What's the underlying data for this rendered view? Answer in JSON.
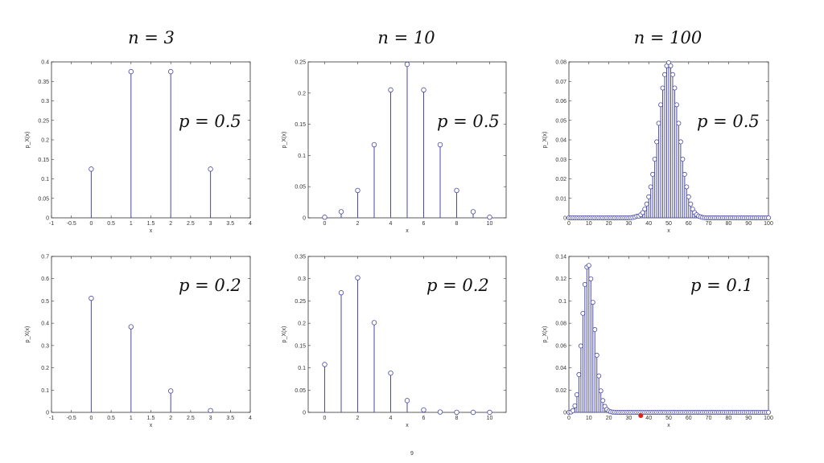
{
  "column_titles": [
    "n = 3",
    "n = 10",
    "n = 100"
  ],
  "page_number": "9",
  "colors": {
    "stem": "#4a4aa8",
    "marker_fill": "#ffffff",
    "highlight": "#e02020"
  },
  "highlight_point": {
    "panel": 5,
    "x": 36,
    "y": 0
  },
  "chart_data": [
    {
      "type": "stem",
      "n": 3,
      "p": 0.5,
      "annotation": "p = 0.5",
      "xlabel": "x",
      "ylabel": "p_X(x)",
      "xlim": [
        -1,
        4
      ],
      "ylim": [
        0,
        0.4
      ],
      "xticks": [
        "-1",
        "-0.5",
        "0",
        "0.5",
        "1",
        "1.5",
        "2",
        "2.5",
        "3",
        "3.5",
        "4"
      ],
      "yticks": [
        "0",
        "0.05",
        "0.1",
        "0.15",
        "0.2",
        "0.25",
        "0.3",
        "0.35",
        "0.4"
      ],
      "x": [
        0,
        1,
        2,
        3
      ],
      "y": [
        0.125,
        0.375,
        0.375,
        0.125
      ]
    },
    {
      "type": "stem",
      "n": 10,
      "p": 0.5,
      "annotation": "p = 0.5",
      "xlabel": "x",
      "ylabel": "p_X(x)",
      "xlim": [
        -1,
        11
      ],
      "ylim": [
        0,
        0.25
      ],
      "xticks": [
        "0",
        "2",
        "4",
        "6",
        "8",
        "10"
      ],
      "yticks": [
        "0",
        "0.05",
        "0.1",
        "0.15",
        "0.2",
        "0.25"
      ],
      "x": [
        0,
        1,
        2,
        3,
        4,
        5,
        6,
        7,
        8,
        9,
        10
      ],
      "y": [
        0.001,
        0.0098,
        0.0439,
        0.1172,
        0.2051,
        0.2461,
        0.2051,
        0.1172,
        0.0439,
        0.0098,
        0.001
      ]
    },
    {
      "type": "stem",
      "n": 100,
      "p": 0.5,
      "annotation": "p = 0.5",
      "xlabel": "x",
      "ylabel": "p_X(x)",
      "xlim": [
        0,
        100
      ],
      "ylim": [
        0,
        0.08
      ],
      "xticks": [
        "0",
        "10",
        "20",
        "30",
        "40",
        "50",
        "60",
        "70",
        "80",
        "90",
        "100"
      ],
      "yticks": [
        "0",
        "0.01",
        "0.02",
        "0.03",
        "0.04",
        "0.05",
        "0.06",
        "0.07",
        "0.08"
      ],
      "x": [
        0,
        1,
        2,
        3,
        4,
        5,
        6,
        7,
        8,
        9,
        10,
        11,
        12,
        13,
        14,
        15,
        16,
        17,
        18,
        19,
        20,
        21,
        22,
        23,
        24,
        25,
        26,
        27,
        28,
        29,
        30,
        31,
        32,
        33,
        34,
        35,
        36,
        37,
        38,
        39,
        40,
        41,
        42,
        43,
        44,
        45,
        46,
        47,
        48,
        49,
        50,
        51,
        52,
        53,
        54,
        55,
        56,
        57,
        58,
        59,
        60,
        61,
        62,
        63,
        64,
        65,
        66,
        67,
        68,
        69,
        70,
        71,
        72,
        73,
        74,
        75,
        76,
        77,
        78,
        79,
        80,
        81,
        82,
        83,
        84,
        85,
        86,
        87,
        88,
        89,
        90,
        91,
        92,
        93,
        94,
        95,
        96,
        97,
        98,
        99,
        100
      ],
      "y": [
        0,
        0,
        0,
        0,
        0,
        0,
        0,
        0,
        0,
        0,
        0,
        0,
        0,
        0,
        0,
        0,
        0,
        0,
        0,
        0,
        0,
        0,
        0,
        0,
        0,
        0,
        0,
        0,
        0,
        0,
        0,
        0.0001,
        0.0002,
        0.0004,
        0.0008,
        0.0009,
        0.0016,
        0.0027,
        0.0045,
        0.0071,
        0.0108,
        0.0159,
        0.0223,
        0.0301,
        0.039,
        0.0485,
        0.058,
        0.0666,
        0.0735,
        0.078,
        0.0796,
        0.078,
        0.0735,
        0.0666,
        0.058,
        0.0485,
        0.039,
        0.0301,
        0.0223,
        0.0159,
        0.0108,
        0.0071,
        0.0045,
        0.0027,
        0.0016,
        0.0009,
        0.0005,
        0.0002,
        0.0001,
        0,
        0,
        0,
        0,
        0,
        0,
        0,
        0,
        0,
        0,
        0,
        0,
        0,
        0,
        0,
        0,
        0,
        0,
        0,
        0,
        0,
        0,
        0,
        0,
        0,
        0,
        0,
        0,
        0,
        0,
        0,
        0
      ]
    },
    {
      "type": "stem",
      "n": 3,
      "p": 0.2,
      "annotation": "p = 0.2",
      "xlabel": "x",
      "ylabel": "p_X(x)",
      "xlim": [
        -1,
        4
      ],
      "ylim": [
        0,
        0.7
      ],
      "xticks": [
        "-1",
        "-0.5",
        "0",
        "0.5",
        "1",
        "1.5",
        "2",
        "2.5",
        "3",
        "3.5",
        "4"
      ],
      "yticks": [
        "0",
        "0.1",
        "0.2",
        "0.3",
        "0.4",
        "0.5",
        "0.6",
        "0.7"
      ],
      "x": [
        0,
        1,
        2,
        3
      ],
      "y": [
        0.512,
        0.384,
        0.096,
        0.008
      ]
    },
    {
      "type": "stem",
      "n": 10,
      "p": 0.2,
      "annotation": "p = 0.2",
      "xlabel": "x",
      "ylabel": "p_X(x)",
      "xlim": [
        -1,
        11
      ],
      "ylim": [
        0,
        0.35
      ],
      "xticks": [
        "0",
        "2",
        "4",
        "6",
        "8",
        "10"
      ],
      "yticks": [
        "0",
        "0.05",
        "0.1",
        "0.15",
        "0.2",
        "0.25",
        "0.3",
        "0.35"
      ],
      "x": [
        0,
        1,
        2,
        3,
        4,
        5,
        6,
        7,
        8,
        9,
        10
      ],
      "y": [
        0.1074,
        0.2684,
        0.302,
        0.2013,
        0.0881,
        0.0264,
        0.0055,
        0.0008,
        0.0001,
        0,
        0
      ]
    },
    {
      "type": "stem",
      "n": 100,
      "p": 0.1,
      "annotation": "p = 0.1",
      "xlabel": "x",
      "ylabel": "p_X(x)",
      "xlim": [
        0,
        100
      ],
      "ylim": [
        0,
        0.14
      ],
      "xticks": [
        "0",
        "10",
        "20",
        "30",
        "40",
        "50",
        "60",
        "70",
        "80",
        "90",
        "100"
      ],
      "yticks": [
        "0",
        "0.02",
        "0.04",
        "0.06",
        "0.08",
        "0.1",
        "0.12",
        "0.14"
      ],
      "x": [
        0,
        1,
        2,
        3,
        4,
        5,
        6,
        7,
        8,
        9,
        10,
        11,
        12,
        13,
        14,
        15,
        16,
        17,
        18,
        19,
        20,
        21,
        22,
        23,
        24,
        25,
        26,
        27,
        28,
        29,
        30,
        31,
        32,
        33,
        34,
        35,
        36,
        37,
        38,
        39,
        40,
        41,
        42,
        43,
        44,
        45,
        46,
        47,
        48,
        49,
        50,
        51,
        52,
        53,
        54,
        55,
        56,
        57,
        58,
        59,
        60,
        61,
        62,
        63,
        64,
        65,
        66,
        67,
        68,
        69,
        70,
        71,
        72,
        73,
        74,
        75,
        76,
        77,
        78,
        79,
        80,
        81,
        82,
        83,
        84,
        85,
        86,
        87,
        88,
        89,
        90,
        91,
        92,
        93,
        94,
        95,
        96,
        97,
        98,
        99,
        100
      ],
      "y": [
        0,
        0.0003,
        0.0016,
        0.0059,
        0.0159,
        0.0339,
        0.0596,
        0.0889,
        0.1148,
        0.1304,
        0.1319,
        0.1199,
        0.0988,
        0.0743,
        0.0513,
        0.0327,
        0.0193,
        0.0106,
        0.0054,
        0.0026,
        0.0012,
        0.0005,
        0.0002,
        0.0001,
        0,
        0,
        0,
        0,
        0,
        0,
        0,
        0,
        0,
        0,
        0,
        0,
        0,
        0,
        0,
        0,
        0,
        0,
        0,
        0,
        0,
        0,
        0,
        0,
        0,
        0,
        0,
        0,
        0,
        0,
        0,
        0,
        0,
        0,
        0,
        0,
        0,
        0,
        0,
        0,
        0,
        0,
        0,
        0,
        0,
        0,
        0,
        0,
        0,
        0,
        0,
        0,
        0,
        0,
        0,
        0,
        0,
        0,
        0,
        0,
        0,
        0,
        0,
        0,
        0,
        0,
        0,
        0,
        0,
        0,
        0,
        0,
        0,
        0,
        0,
        0,
        0
      ]
    }
  ]
}
